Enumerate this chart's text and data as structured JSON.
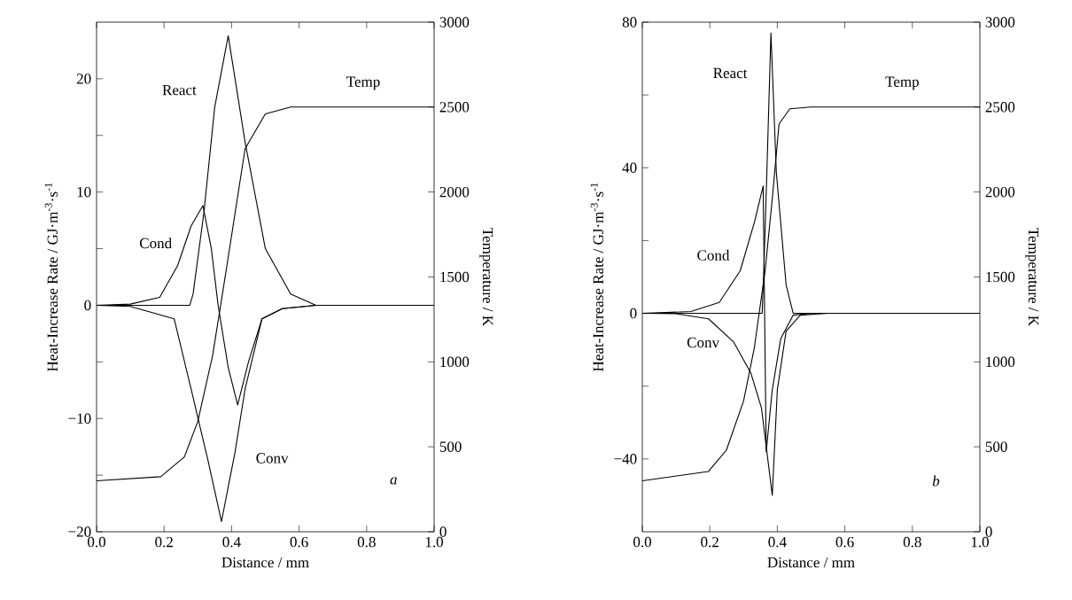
{
  "chart_data": [
    {
      "type": "line",
      "xlabel": "Distance / mm",
      "ylabel": "Heat-Increase Rate / GJ·m$^{-3}$·s$^{-1}$",
      "y2label": "Temperature / K",
      "xlim": [
        0,
        1
      ],
      "ylim": [
        -20,
        25
      ],
      "y2lim": [
        0,
        3000
      ],
      "xticks": [
        {
          "value": 0,
          "label": "0.0"
        },
        {
          "value": 0.2,
          "label": "0.2"
        },
        {
          "value": 0.4,
          "label": "0.4"
        },
        {
          "value": 0.6,
          "label": "0.6"
        },
        {
          "value": 0.8,
          "label": "0.8"
        },
        {
          "value": 1,
          "label": "1.0"
        }
      ],
      "yticks": [
        {
          "value": -20,
          "label": "−20"
        },
        {
          "value": -15,
          "label": null
        },
        {
          "value": -10,
          "label": "−10"
        },
        {
          "value": -5,
          "label": null
        },
        0,
        {
          "value": 5,
          "label": null
        },
        10,
        {
          "value": 15,
          "label": null
        },
        20
      ],
      "y2ticks": [
        0,
        500,
        1000,
        1500,
        2000,
        2500,
        3000
      ],
      "annotations": [
        "a"
      ],
      "series": [
        {
          "name": "React",
          "color": "#000000",
          "x": [
            0,
            0.2,
            0.276,
            0.286,
            0.318,
            0.35,
            0.39,
            0.44,
            0.5,
            0.575,
            0.65,
            0.8,
            1
          ],
          "values": [
            0,
            0,
            0,
            1,
            8.2,
            17.5,
            23.8,
            14.4,
            5,
            1,
            0,
            0,
            0
          ]
        },
        {
          "name": "Cond",
          "color": "#000000",
          "x": [
            0,
            0.1,
            0.187,
            0.24,
            0.28,
            0.315,
            0.34,
            0.36,
            0.39,
            0.418,
            0.45,
            0.49,
            0.55,
            0.65,
            1
          ],
          "values": [
            0,
            0.1,
            0.7,
            3.5,
            7,
            8.8,
            5,
            0,
            -5.5,
            -8.8,
            -5,
            -1.2,
            -0.3,
            0,
            0
          ]
        },
        {
          "name": "Conv",
          "color": "#000000",
          "x": [
            0,
            0.1,
            0.23,
            0.28,
            0.33,
            0.37,
            0.41,
            0.44,
            0.49,
            0.55,
            0.65,
            1
          ],
          "values": [
            0,
            -0.1,
            -1.2,
            -7.4,
            -13.7,
            -19.1,
            -13,
            -7.4,
            -1.2,
            -0.3,
            0,
            0
          ]
        },
        {
          "name": "Temp",
          "axis": "y2",
          "color": "#000000",
          "x": [
            0,
            0.19,
            0.26,
            0.3,
            0.344,
            0.386,
            0.44,
            0.5,
            0.575,
            0.7,
            1
          ],
          "values": [
            300,
            324,
            440,
            650,
            1040,
            1565,
            2255,
            2460,
            2500,
            2500,
            2500
          ]
        }
      ]
    },
    {
      "type": "line",
      "xlabel": "Distance / mm",
      "ylabel": "Heat-Increase Rate / GJ·m$^{-3}$·s$^{-1}$",
      "y2label": "Temperature / K",
      "xlim": [
        0,
        1
      ],
      "ylim": [
        -60,
        80
      ],
      "y2lim": [
        0,
        3000
      ],
      "xticks": [
        {
          "value": 0,
          "label": "0.0"
        },
        {
          "value": 0.2,
          "label": "0.2"
        },
        {
          "value": 0.4,
          "label": "0.4"
        },
        {
          "value": 0.6,
          "label": "0.6"
        },
        {
          "value": 0.8,
          "label": "0.8"
        },
        {
          "value": 1,
          "label": "1.0"
        }
      ],
      "yticks": [
        {
          "value": -40,
          "label": "−40"
        },
        {
          "value": -20,
          "label": null
        },
        0,
        {
          "value": 20,
          "label": null
        },
        40,
        {
          "value": 60,
          "label": null
        },
        80
      ],
      "y2ticks": [
        0,
        500,
        1000,
        1500,
        2000,
        2500,
        3000
      ],
      "annotations": [
        "b"
      ],
      "series": [
        {
          "name": "React",
          "color": "#000000",
          "x": [
            0,
            0.2,
            0.355,
            0.36,
            0.369,
            0.381,
            0.397,
            0.426,
            0.447,
            0.6,
            1
          ],
          "values": [
            0,
            0,
            0,
            12,
            38.8,
            77,
            38.8,
            7.8,
            0,
            0,
            0
          ]
        },
        {
          "name": "Cond",
          "color": "#000000",
          "x": [
            0,
            0.144,
            0.228,
            0.29,
            0.332,
            0.358,
            0.367,
            0.385,
            0.41,
            0.447,
            0.5,
            1
          ],
          "values": [
            0,
            0.5,
            3,
            11.7,
            25,
            35,
            -38,
            -21,
            -7,
            -0.5,
            0,
            0
          ]
        },
        {
          "name": "Conv",
          "color": "#000000",
          "x": [
            0,
            0.1,
            0.196,
            0.27,
            0.322,
            0.353,
            0.385,
            0.4,
            0.426,
            0.468,
            0.55,
            1
          ],
          "values": [
            0,
            -0.1,
            -1.5,
            -7.8,
            -16.5,
            -26,
            -50,
            -21,
            -4.9,
            -0.5,
            0,
            0
          ]
        },
        {
          "name": "Temp",
          "axis": "y2",
          "color": "#000000",
          "x": [
            0,
            0.196,
            0.249,
            0.3,
            0.332,
            0.364,
            0.385,
            0.405,
            0.437,
            0.5,
            1
          ],
          "values": [
            300,
            355,
            480,
            770,
            1085,
            1540,
            1960,
            2400,
            2490,
            2500,
            2500
          ]
        }
      ]
    }
  ]
}
